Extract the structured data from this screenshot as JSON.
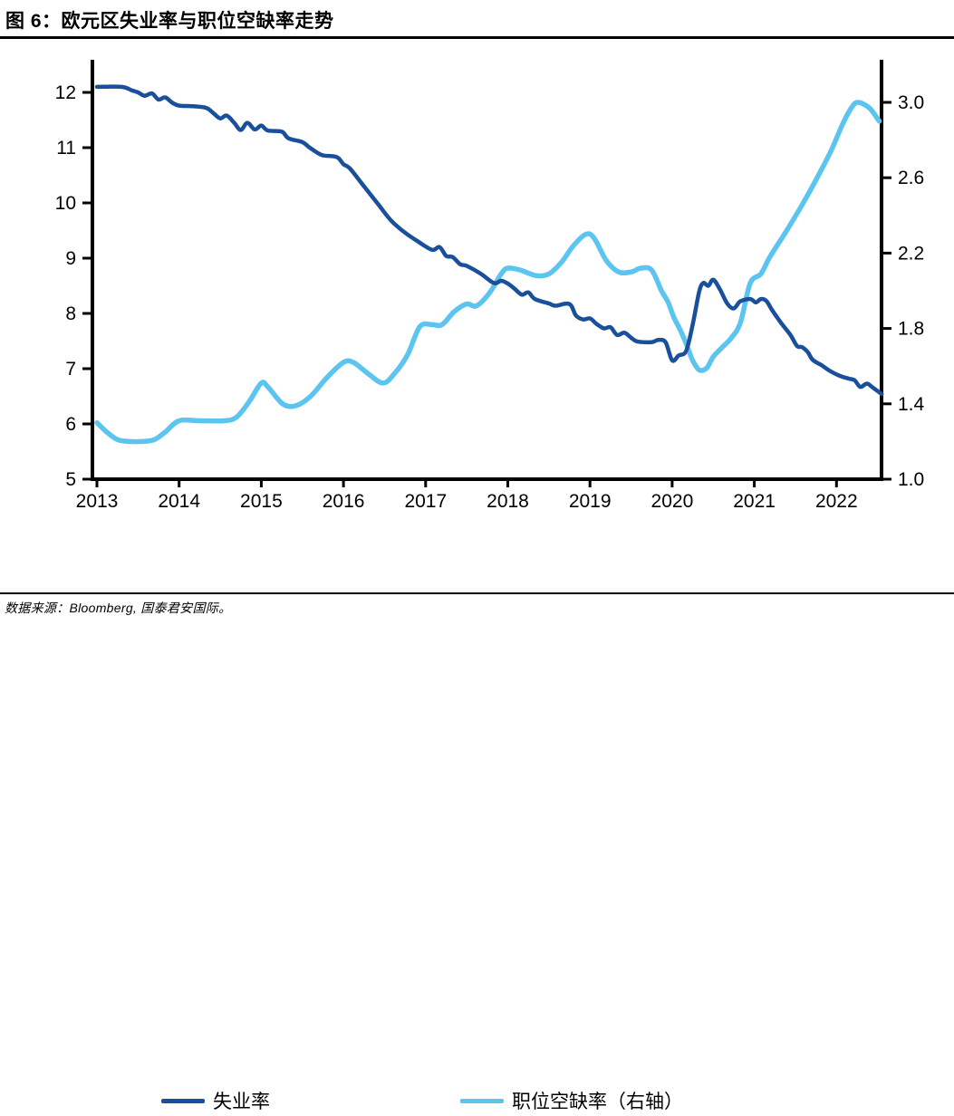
{
  "header": {
    "title": "图 6：欧元区失业率与职位空缺率走势"
  },
  "footer": {
    "source_text": "数据来源：Bloomberg, 国泰君安国际。"
  },
  "chart_data": {
    "type": "line",
    "title": "欧元区失业率与职位空缺率走势",
    "grid": false,
    "legend_position": "bottom",
    "x_axis": {
      "range": [
        2013.0,
        2022.55
      ],
      "tick_values": [
        2013,
        2014,
        2015,
        2016,
        2017,
        2018,
        2019,
        2020,
        2021,
        2022
      ],
      "tick_labels": [
        "2013",
        "2014",
        "2015",
        "2016",
        "2017",
        "2018",
        "2019",
        "2020",
        "2021",
        "2022"
      ]
    },
    "y_axis_left": {
      "range": [
        5,
        12.3
      ],
      "tick_values": [
        5,
        6,
        7,
        8,
        9,
        10,
        11,
        12
      ],
      "tick_labels": [
        "5",
        "6",
        "7",
        "8",
        "9",
        "10",
        "11",
        "12"
      ]
    },
    "y_axis_right": {
      "range": [
        1.0,
        3.1
      ],
      "tick_values": [
        1.0,
        1.4,
        1.8,
        2.2,
        2.6,
        3.0
      ],
      "tick_labels": [
        "1.0",
        "1.4",
        "1.8",
        "2.2",
        "2.6",
        "3.0"
      ]
    },
    "legend": [
      {
        "label": "失业率",
        "color": "#1A4F9C"
      },
      {
        "label": "职位空缺率（右轴）",
        "color": "#5BC4EF"
      }
    ],
    "series": [
      {
        "name": "职位空缺率（右轴）",
        "axis": "right",
        "color": "#5BC4EF",
        "width": 5.5,
        "points": [
          [
            2013.0,
            1.3
          ],
          [
            2013.12,
            1.25
          ],
          [
            2013.25,
            1.21
          ],
          [
            2013.4,
            1.2
          ],
          [
            2013.55,
            1.2
          ],
          [
            2013.7,
            1.21
          ],
          [
            2013.83,
            1.25
          ],
          [
            2014.0,
            1.31
          ],
          [
            2014.25,
            1.31
          ],
          [
            2014.55,
            1.31
          ],
          [
            2014.7,
            1.33
          ],
          [
            2014.85,
            1.41
          ],
          [
            2015.0,
            1.51
          ],
          [
            2015.08,
            1.49
          ],
          [
            2015.26,
            1.4
          ],
          [
            2015.42,
            1.39
          ],
          [
            2015.6,
            1.44
          ],
          [
            2015.8,
            1.54
          ],
          [
            2016.0,
            1.62
          ],
          [
            2016.12,
            1.62
          ],
          [
            2016.3,
            1.56
          ],
          [
            2016.48,
            1.51
          ],
          [
            2016.62,
            1.56
          ],
          [
            2016.78,
            1.66
          ],
          [
            2016.93,
            1.81
          ],
          [
            2017.08,
            1.82
          ],
          [
            2017.2,
            1.82
          ],
          [
            2017.35,
            1.89
          ],
          [
            2017.5,
            1.93
          ],
          [
            2017.62,
            1.92
          ],
          [
            2017.78,
            1.99
          ],
          [
            2017.92,
            2.09
          ],
          [
            2018.0,
            2.12
          ],
          [
            2018.15,
            2.11
          ],
          [
            2018.35,
            2.08
          ],
          [
            2018.5,
            2.09
          ],
          [
            2018.65,
            2.15
          ],
          [
            2018.8,
            2.24
          ],
          [
            2018.95,
            2.3
          ],
          [
            2019.05,
            2.28
          ],
          [
            2019.2,
            2.16
          ],
          [
            2019.35,
            2.1
          ],
          [
            2019.5,
            2.1
          ],
          [
            2019.62,
            2.12
          ],
          [
            2019.75,
            2.11
          ],
          [
            2019.87,
            2.0
          ],
          [
            2019.95,
            1.94
          ],
          [
            2020.02,
            1.86
          ],
          [
            2020.1,
            1.79
          ],
          [
            2020.17,
            1.72
          ],
          [
            2020.25,
            1.63
          ],
          [
            2020.33,
            1.58
          ],
          [
            2020.42,
            1.59
          ],
          [
            2020.5,
            1.65
          ],
          [
            2020.61,
            1.7
          ],
          [
            2020.72,
            1.75
          ],
          [
            2020.83,
            1.83
          ],
          [
            2020.95,
            2.04
          ],
          [
            2021.08,
            2.09
          ],
          [
            2021.19,
            2.18
          ],
          [
            2021.38,
            2.31
          ],
          [
            2021.56,
            2.44
          ],
          [
            2021.74,
            2.58
          ],
          [
            2021.93,
            2.74
          ],
          [
            2022.07,
            2.88
          ],
          [
            2022.18,
            2.97
          ],
          [
            2022.26,
            3.0
          ],
          [
            2022.4,
            2.97
          ],
          [
            2022.52,
            2.9
          ]
        ]
      },
      {
        "name": "失业率",
        "axis": "left",
        "color": "#1A4F9C",
        "width": 4.5,
        "points": [
          [
            2013.0,
            12.1
          ],
          [
            2013.3,
            12.1
          ],
          [
            2013.42,
            12.04
          ],
          [
            2013.5,
            12.0
          ],
          [
            2013.58,
            11.94
          ],
          [
            2013.67,
            11.98
          ],
          [
            2013.75,
            11.87
          ],
          [
            2013.83,
            11.91
          ],
          [
            2013.92,
            11.81
          ],
          [
            2014.0,
            11.76
          ],
          [
            2014.17,
            11.75
          ],
          [
            2014.33,
            11.72
          ],
          [
            2014.42,
            11.62
          ],
          [
            2014.5,
            11.53
          ],
          [
            2014.58,
            11.58
          ],
          [
            2014.67,
            11.45
          ],
          [
            2014.75,
            11.32
          ],
          [
            2014.83,
            11.45
          ],
          [
            2014.92,
            11.33
          ],
          [
            2015.0,
            11.4
          ],
          [
            2015.08,
            11.31
          ],
          [
            2015.25,
            11.29
          ],
          [
            2015.33,
            11.17
          ],
          [
            2015.5,
            11.1
          ],
          [
            2015.58,
            11.01
          ],
          [
            2015.67,
            10.92
          ],
          [
            2015.75,
            10.86
          ],
          [
            2015.92,
            10.83
          ],
          [
            2016.0,
            10.7
          ],
          [
            2016.08,
            10.62
          ],
          [
            2016.25,
            10.3
          ],
          [
            2016.42,
            9.98
          ],
          [
            2016.58,
            9.68
          ],
          [
            2016.75,
            9.46
          ],
          [
            2016.92,
            9.29
          ],
          [
            2017.08,
            9.15
          ],
          [
            2017.17,
            9.2
          ],
          [
            2017.25,
            9.04
          ],
          [
            2017.33,
            9.02
          ],
          [
            2017.42,
            8.89
          ],
          [
            2017.5,
            8.86
          ],
          [
            2017.67,
            8.72
          ],
          [
            2017.83,
            8.55
          ],
          [
            2017.92,
            8.59
          ],
          [
            2018.0,
            8.54
          ],
          [
            2018.08,
            8.45
          ],
          [
            2018.17,
            8.34
          ],
          [
            2018.25,
            8.38
          ],
          [
            2018.33,
            8.26
          ],
          [
            2018.5,
            8.18
          ],
          [
            2018.58,
            8.14
          ],
          [
            2018.75,
            8.17
          ],
          [
            2018.83,
            7.96
          ],
          [
            2018.92,
            7.89
          ],
          [
            2019.0,
            7.91
          ],
          [
            2019.08,
            7.81
          ],
          [
            2019.17,
            7.73
          ],
          [
            2019.25,
            7.75
          ],
          [
            2019.33,
            7.61
          ],
          [
            2019.42,
            7.65
          ],
          [
            2019.5,
            7.56
          ],
          [
            2019.58,
            7.49
          ],
          [
            2019.75,
            7.48
          ],
          [
            2019.83,
            7.52
          ],
          [
            2019.92,
            7.48
          ],
          [
            2020.0,
            7.15
          ],
          [
            2020.08,
            7.24
          ],
          [
            2020.17,
            7.32
          ],
          [
            2020.25,
            7.8
          ],
          [
            2020.33,
            8.4
          ],
          [
            2020.38,
            8.55
          ],
          [
            2020.44,
            8.5
          ],
          [
            2020.5,
            8.61
          ],
          [
            2020.58,
            8.44
          ],
          [
            2020.67,
            8.18
          ],
          [
            2020.75,
            8.09
          ],
          [
            2020.83,
            8.22
          ],
          [
            2020.95,
            8.26
          ],
          [
            2021.02,
            8.2
          ],
          [
            2021.08,
            8.26
          ],
          [
            2021.15,
            8.22
          ],
          [
            2021.22,
            8.05
          ],
          [
            2021.33,
            7.82
          ],
          [
            2021.44,
            7.61
          ],
          [
            2021.52,
            7.41
          ],
          [
            2021.58,
            7.39
          ],
          [
            2021.65,
            7.3
          ],
          [
            2021.71,
            7.16
          ],
          [
            2021.82,
            7.06
          ],
          [
            2021.93,
            6.95
          ],
          [
            2022.04,
            6.87
          ],
          [
            2022.15,
            6.82
          ],
          [
            2022.22,
            6.79
          ],
          [
            2022.29,
            6.67
          ],
          [
            2022.37,
            6.73
          ],
          [
            2022.44,
            6.66
          ],
          [
            2022.55,
            6.54
          ]
        ]
      }
    ]
  }
}
